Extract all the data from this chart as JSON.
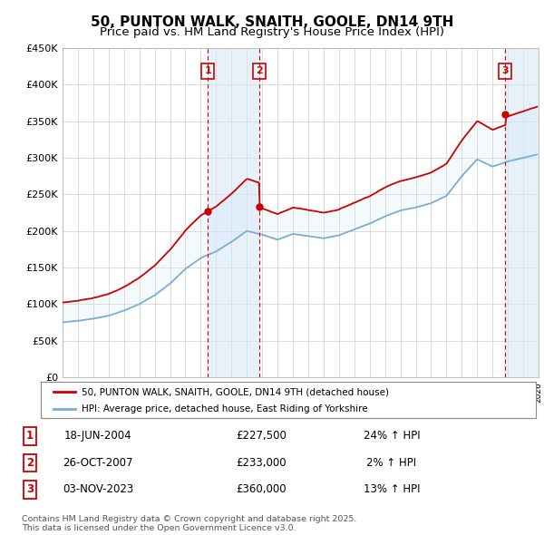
{
  "title": "50, PUNTON WALK, SNAITH, GOOLE, DN14 9TH",
  "subtitle": "Price paid vs. HM Land Registry's House Price Index (HPI)",
  "red_label": "50, PUNTON WALK, SNAITH, GOOLE, DN14 9TH (detached house)",
  "blue_label": "HPI: Average price, detached house, East Riding of Yorkshire",
  "footer": "Contains HM Land Registry data © Crown copyright and database right 2025.\nThis data is licensed under the Open Government Licence v3.0.",
  "sales": [
    {
      "num": 1,
      "date": "18-JUN-2004",
      "price": "£227,500",
      "pct": "24% ↑ HPI",
      "year": 2004.46,
      "price_val": 227500
    },
    {
      "num": 2,
      "date": "26-OCT-2007",
      "price": "£233,000",
      "pct": "2% ↑ HPI",
      "year": 2007.82,
      "price_val": 233000
    },
    {
      "num": 3,
      "date": "03-NOV-2023",
      "price": "£360,000",
      "pct": "13% ↑ HPI",
      "year": 2023.84,
      "price_val": 360000
    }
  ],
  "xlim": [
    1995,
    2026
  ],
  "ylim": [
    0,
    450000
  ],
  "yticks": [
    0,
    50000,
    100000,
    150000,
    200000,
    250000,
    300000,
    350000,
    400000,
    450000
  ],
  "ytick_labels": [
    "£0",
    "£50K",
    "£100K",
    "£150K",
    "£200K",
    "£250K",
    "£300K",
    "£350K",
    "£400K",
    "£450K"
  ],
  "background_color": "#ffffff",
  "grid_color": "#cccccc",
  "red_color": "#cc0000",
  "blue_color": "#7aadd4",
  "shade_color": "#d6e8f7",
  "vline_color": "#dd0000",
  "box_color": "#cc0000",
  "title_fontsize": 11,
  "subtitle_fontsize": 9.5,
  "axis_fontsize": 8,
  "hpi_years": [
    1995,
    1996,
    1997,
    1998,
    1999,
    2000,
    2001,
    2002,
    2003,
    2004,
    2005,
    2006,
    2007,
    2008,
    2009,
    2010,
    2011,
    2012,
    2013,
    2014,
    2015,
    2016,
    2017,
    2018,
    2019,
    2020,
    2021,
    2022,
    2023,
    2024,
    2025,
    2026
  ],
  "hpi_vals": [
    75000,
    77000,
    80000,
    84000,
    91000,
    100000,
    112000,
    128000,
    148000,
    163000,
    172000,
    185000,
    200000,
    195000,
    188000,
    196000,
    193000,
    190000,
    194000,
    202000,
    210000,
    220000,
    228000,
    232000,
    238000,
    248000,
    275000,
    298000,
    288000,
    295000,
    300000,
    305000
  ]
}
